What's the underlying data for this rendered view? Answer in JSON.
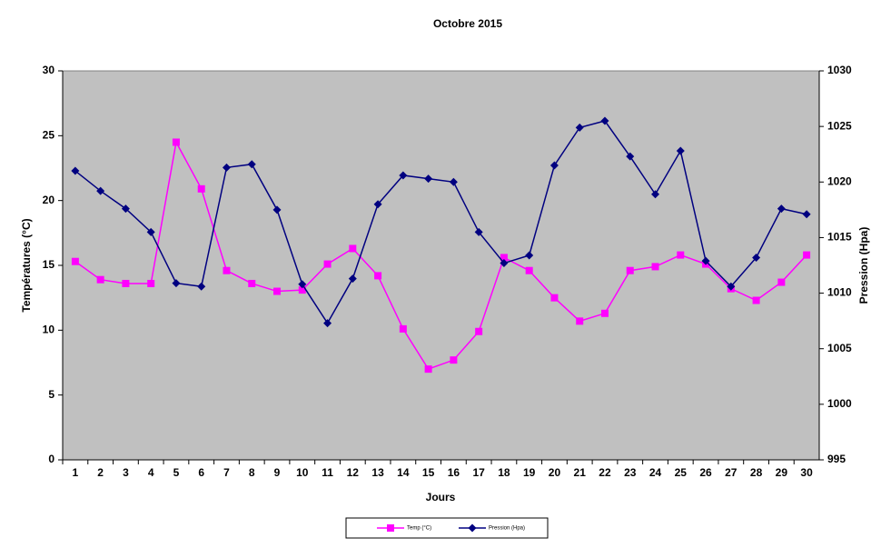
{
  "chart_data": {
    "type": "line",
    "title": "Octobre 2015",
    "x_label": "Jours",
    "y_label": "Températures (°C)",
    "y2_label": "Pression (Hpa)",
    "categories": [
      "1",
      "2",
      "3",
      "4",
      "5",
      "6",
      "7",
      "8",
      "9",
      "10",
      "11",
      "12",
      "13",
      "14",
      "15",
      "16",
      "17",
      "18",
      "19",
      "20",
      "21",
      "22",
      "23",
      "24",
      "25",
      "26",
      "27",
      "28",
      "29",
      "30"
    ],
    "series": [
      {
        "name": "Temp (°C)",
        "color": "#ff00ff",
        "marker": "square",
        "values": [
          15.3,
          13.9,
          13.6,
          13.6,
          24.5,
          20.9,
          14.6,
          13.6,
          13.0,
          13.1,
          15.1,
          16.3,
          14.2,
          10.1,
          7.0,
          7.7,
          9.9,
          15.6,
          14.6,
          12.5,
          10.7,
          11.3,
          14.6,
          14.9,
          15.8,
          15.1,
          13.2,
          12.3,
          13.7,
          15.8
        ]
      },
      {
        "name": "Pression (Hpa)",
        "color": "#000080",
        "marker": "diamond",
        "axis": "y2",
        "values": [
          1021.0,
          1019.2,
          1017.6,
          1015.5,
          1010.9,
          1010.6,
          1021.3,
          1021.6,
          1017.5,
          1010.8,
          1007.3,
          1011.3,
          1018.0,
          1020.6,
          1020.3,
          1020.0,
          1015.5,
          1012.7,
          1013.4,
          1021.5,
          1024.9,
          1025.5,
          1022.3,
          1018.9,
          1022.8,
          1012.9,
          1010.6,
          1013.2,
          1017.6,
          1017.1
        ]
      }
    ],
    "ylim": [
      0,
      30
    ],
    "yticks": [
      0,
      5,
      10,
      15,
      20,
      25,
      30
    ],
    "y2lim": [
      995,
      1030
    ],
    "y2ticks": [
      995,
      1000,
      1005,
      1010,
      1015,
      1020,
      1025,
      1030
    ],
    "plot_background": "#c0c0c0",
    "legend": "bottom"
  }
}
